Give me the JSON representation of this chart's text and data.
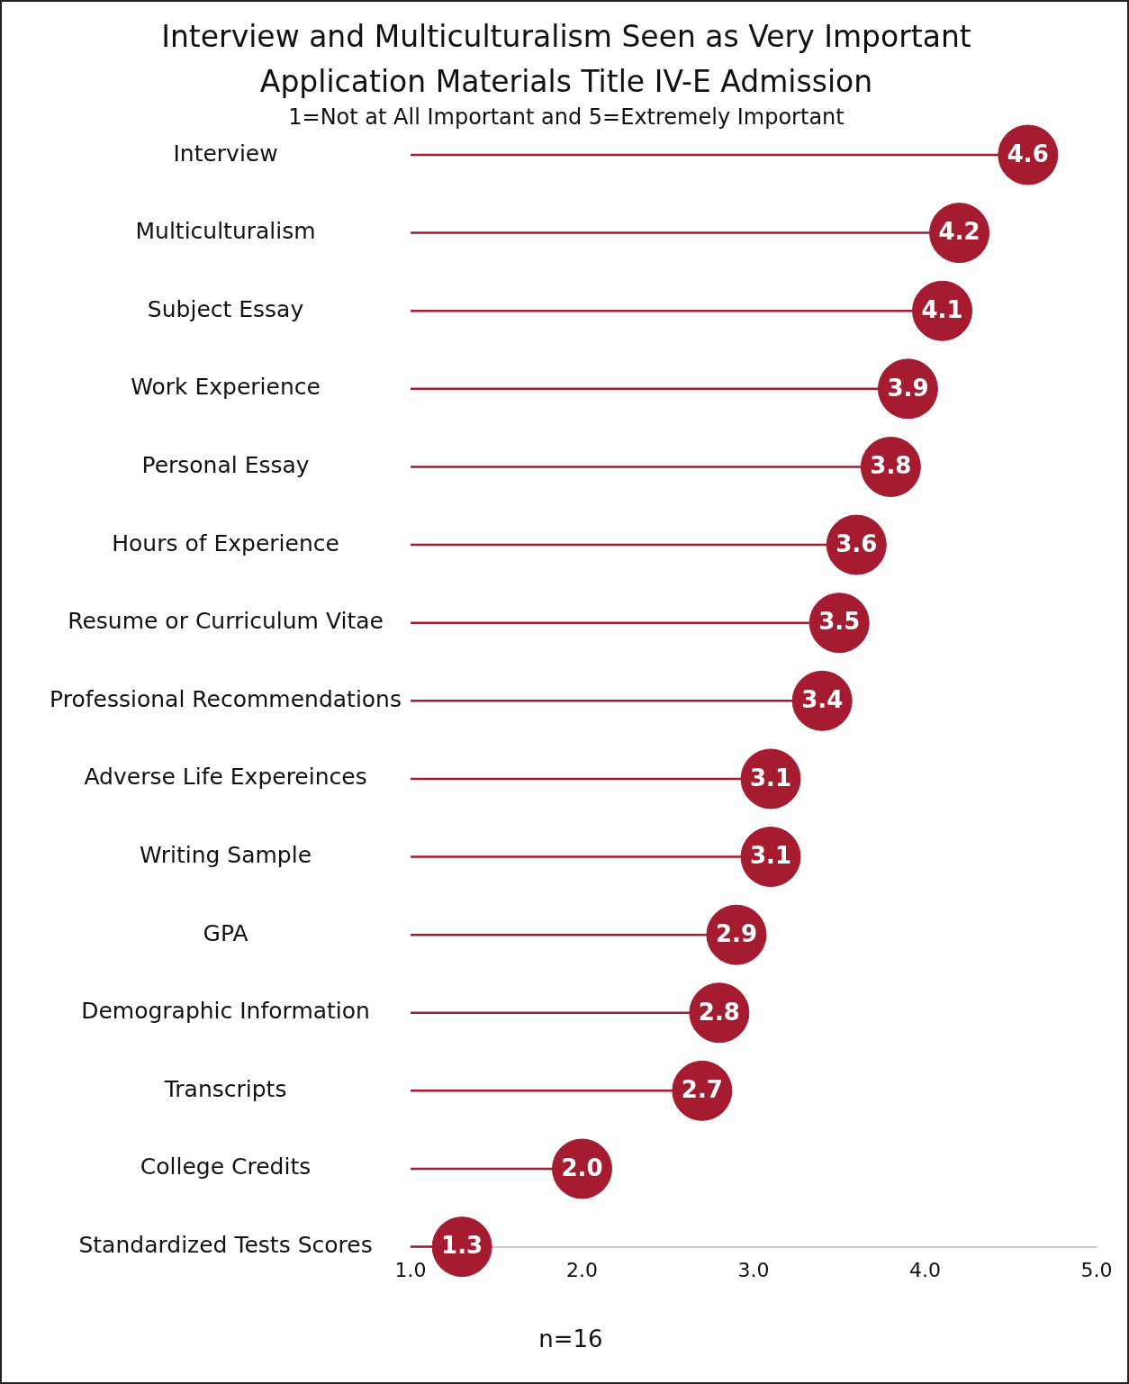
{
  "chart_data": {
    "type": "lollipop",
    "orientation": "horizontal",
    "title": "Interview and Multiculturalism Seen as Very Important Application Materials Title IV-E Admission",
    "subtitle": "1=Not at All Important and 5=Extremely Important",
    "categories": [
      "Interview",
      "Multiculturalism",
      "Subject Essay",
      "Work Experience",
      "Personal Essay",
      "Hours of Experience",
      "Resume or Curriculum Vitae",
      "Professional Recommendations",
      "Adverse Life Expereinces",
      "Writing Sample",
      "GPA",
      "Demographic Information",
      "Transcripts",
      "College Credits",
      "Standardized Tests Scores"
    ],
    "values": [
      4.6,
      4.2,
      4.1,
      3.9,
      3.8,
      3.6,
      3.5,
      3.4,
      3.1,
      3.1,
      2.9,
      2.8,
      2.7,
      2.0,
      1.3
    ],
    "value_labels": [
      "4.6",
      "4.2",
      "4.1",
      "3.9",
      "3.8",
      "3.6",
      "3.5",
      "3.4",
      "3.1",
      "3.1",
      "2.9",
      "2.8",
      "2.7",
      "2.0",
      "1.3"
    ],
    "color": "#a51c30",
    "xlim": [
      1,
      5
    ],
    "xticks": [
      {
        "value": 1,
        "label": "1.0"
      },
      {
        "value": 2,
        "label": "2.0"
      },
      {
        "value": 3,
        "label": "3.0"
      },
      {
        "value": 4,
        "label": "4.0"
      },
      {
        "value": 5,
        "label": "5.0"
      }
    ],
    "grid": false,
    "legend": false,
    "annotations": [
      "n=16"
    ]
  }
}
